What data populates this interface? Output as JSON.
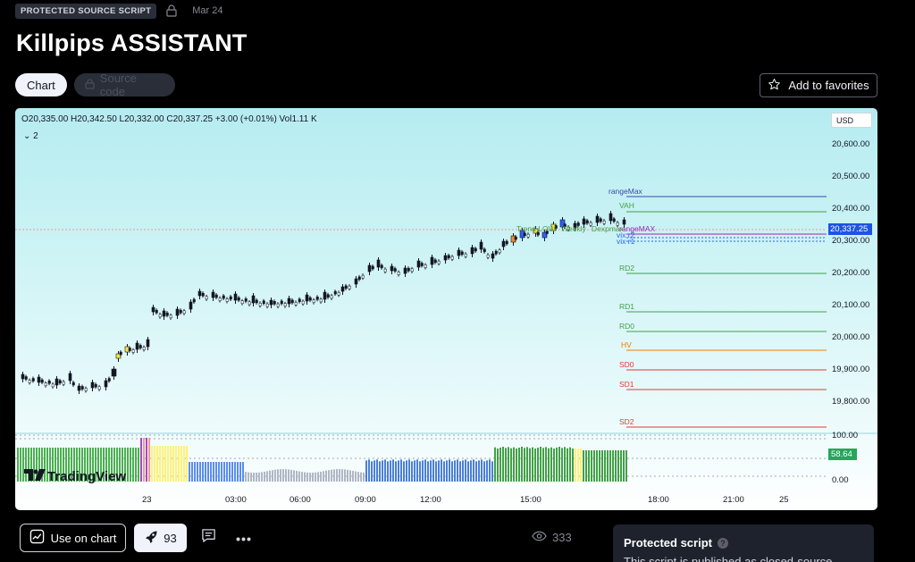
{
  "header": {
    "badge": "PROTECTED SOURCE SCRIPT",
    "date": "Mar 24",
    "title": "Killpips ASSISTANT"
  },
  "tabs": {
    "chart": "Chart",
    "source": "Source code"
  },
  "favorites": {
    "label": "Add to favorites"
  },
  "chart": {
    "ohlc": "O20,335.00  H20,342.50  L20,332.00  C20,337.25  +3.00 (+0.01%)  Vol1.11 K",
    "indicators_toggle": "2",
    "currency": "USD",
    "price_ticks": [
      "20,600.00",
      "20,500.00",
      "20,400.00",
      "20,300.00",
      "20,200.00",
      "20,100.00",
      "20,000.00",
      "19,900.00",
      "19,800.00"
    ],
    "current_price": "20,337.25",
    "osc_ticks": [
      "100.00",
      "0.00"
    ],
    "osc_value": "58.64",
    "time_ticks": [
      "23",
      "03:00",
      "06:00",
      "09:00",
      "12:00",
      "15:00",
      "18:00",
      "21:00",
      "25"
    ],
    "levels": [
      {
        "label": "rangeMax",
        "color": "#3949ab"
      },
      {
        "label": "VAH",
        "color": "#43a047"
      },
      {
        "label": "rangeMAX",
        "color": "#9c27b0"
      },
      {
        "label": "vix r2",
        "color": "#2962ff"
      },
      {
        "label": "vix r1",
        "color": "#2962ff"
      },
      {
        "label": "RD2",
        "color": "#43a047"
      },
      {
        "label": "RD1",
        "color": "#43a047"
      },
      {
        "label": "RD0",
        "color": "#43a047"
      },
      {
        "label": "HV",
        "color": "#f57c00"
      },
      {
        "label": "SD0",
        "color": "#e53935"
      },
      {
        "label": "SD1",
        "color": "#e53935"
      },
      {
        "label": "SD2",
        "color": "#e53935"
      }
    ],
    "annotations": [
      "Trend LOW",
      "Weekly",
      "Dexpmax"
    ],
    "watermark": "TradingView"
  },
  "actions": {
    "use_on_chart": "Use on chart",
    "boosts": "93",
    "views": "333"
  },
  "protected": {
    "title": "Protected script",
    "text": "This script is published as closed-source."
  }
}
